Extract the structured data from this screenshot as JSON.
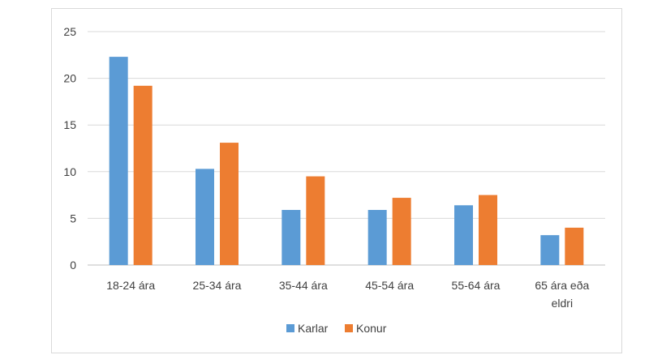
{
  "chart_data": {
    "type": "bar",
    "categories": [
      "18-24 ára",
      "25-34 ára",
      "35-44 ára",
      "45-54 ára",
      "55-64 ára",
      "65 ára eða eldri"
    ],
    "category_label_lines": [
      [
        "18-24 ára"
      ],
      [
        "25-34 ára"
      ],
      [
        "35-44 ára"
      ],
      [
        "45-54 ára"
      ],
      [
        "55-64 ára"
      ],
      [
        "65 ára eða",
        "eldri"
      ]
    ],
    "series": [
      {
        "name": "Karlar",
        "color": "#5b9bd5",
        "values": [
          22.3,
          10.3,
          5.9,
          5.9,
          6.4,
          3.2
        ]
      },
      {
        "name": "Konur",
        "color": "#ed7d31",
        "values": [
          19.2,
          13.1,
          9.5,
          7.2,
          7.5,
          4.0
        ]
      }
    ],
    "title": "",
    "xlabel": "",
    "ylabel": "",
    "ylim": [
      0,
      25
    ],
    "yticks": [
      0,
      5,
      10,
      15,
      20,
      25
    ],
    "grid": true,
    "legend_position": "bottom"
  }
}
